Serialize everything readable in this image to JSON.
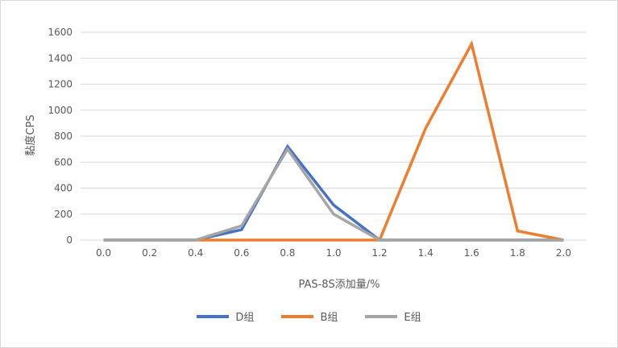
{
  "chart_data": {
    "type": "line",
    "title": "",
    "xlabel": "PAS-8S添加量/%",
    "ylabel": "黏度CPS",
    "x": [
      "0.0",
      "0.2",
      "0.4",
      "0.6",
      "0.8",
      "1.0",
      "1.2",
      "1.4",
      "1.6",
      "1.8",
      "2.0"
    ],
    "ylim": [
      0,
      1600
    ],
    "yticks": [
      "0",
      "200",
      "400",
      "600",
      "800",
      "1000",
      "1200",
      "1400",
      "1600"
    ],
    "grid": true,
    "legend_position": "bottom",
    "series": [
      {
        "name": "D组",
        "color": "#4472c4",
        "values": [
          0,
          0,
          0,
          80,
          720,
          270,
          0,
          0,
          0,
          0,
          0
        ]
      },
      {
        "name": "B组",
        "color": "#ed7d31",
        "values": [
          0,
          0,
          0,
          0,
          0,
          0,
          0,
          860,
          1510,
          70,
          0
        ]
      },
      {
        "name": "E组",
        "color": "#a5a5a5",
        "values": [
          0,
          0,
          0,
          110,
          700,
          200,
          0,
          0,
          0,
          0,
          0
        ]
      }
    ]
  }
}
